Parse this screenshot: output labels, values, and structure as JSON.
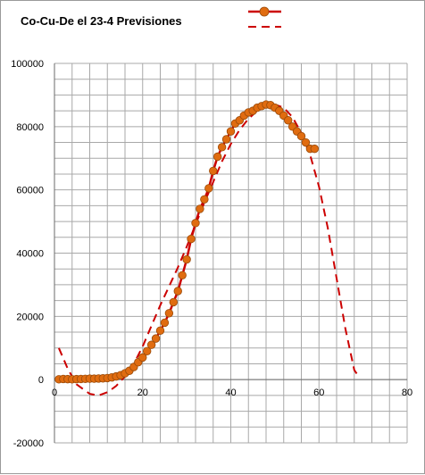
{
  "chart_data": {
    "type": "scatter",
    "title": "Co-Cu-De el 23-4 Previsiones",
    "xlabel": "",
    "ylabel": "",
    "xlim": [
      0,
      80
    ],
    "ylim": [
      -20000,
      100000
    ],
    "x_ticks": [
      "0",
      "20",
      "40",
      "60",
      "80"
    ],
    "y_ticks": [
      "-20000",
      "0",
      "20000",
      "40000",
      "60000",
      "80000",
      "100000"
    ],
    "grid": true,
    "legend_position": "top",
    "series": [
      {
        "style": "line-markers",
        "color": "#e06c10",
        "line_color": "#cc0000",
        "x": [
          1,
          2,
          3,
          4,
          5,
          6,
          7,
          8,
          9,
          10,
          11,
          12,
          13,
          14,
          15,
          16,
          17,
          18,
          19,
          20,
          21,
          22,
          23,
          24,
          25,
          26,
          27,
          28,
          29,
          30,
          31,
          32,
          33,
          34,
          35,
          36,
          37,
          38,
          39,
          40,
          41,
          42,
          43,
          44,
          45,
          46,
          47,
          48,
          49,
          50,
          51,
          52,
          53,
          54,
          55,
          56,
          57,
          58,
          59
        ],
        "values": [
          100,
          200,
          150,
          100,
          150,
          200,
          250,
          300,
          300,
          350,
          400,
          500,
          700,
          1000,
          1400,
          2000,
          2800,
          4000,
          5500,
          7000,
          9000,
          11000,
          13000,
          15500,
          18000,
          21000,
          24500,
          28000,
          33000,
          38000,
          44500,
          49500,
          54000,
          57000,
          60500,
          66000,
          70500,
          73500,
          76000,
          78500,
          81000,
          82000,
          83500,
          84500,
          85000,
          86000,
          86500,
          87000,
          86800,
          86000,
          85000,
          83500,
          82000,
          80000,
          78500,
          77000,
          75000,
          73000,
          73000
        ]
      },
      {
        "style": "dashed",
        "color": "#cc0000",
        "x": [
          1,
          3,
          5,
          8,
          10,
          12,
          14,
          16,
          18,
          20,
          22,
          24,
          26,
          28,
          30,
          32,
          34,
          36,
          38,
          40,
          42,
          44,
          46,
          48,
          50,
          52,
          54,
          56,
          58,
          60,
          62,
          64,
          66,
          68,
          69
        ],
        "values": [
          10000,
          3500,
          -1500,
          -4500,
          -5000,
          -4000,
          -2000,
          1000,
          5000,
          10500,
          17000,
          23500,
          29500,
          35500,
          42000,
          49000,
          56000,
          62500,
          69000,
          74500,
          79000,
          82500,
          85000,
          86500,
          87000,
          86000,
          83000,
          78000,
          71000,
          61000,
          48000,
          32000,
          16000,
          3000,
          1000
        ]
      }
    ]
  }
}
